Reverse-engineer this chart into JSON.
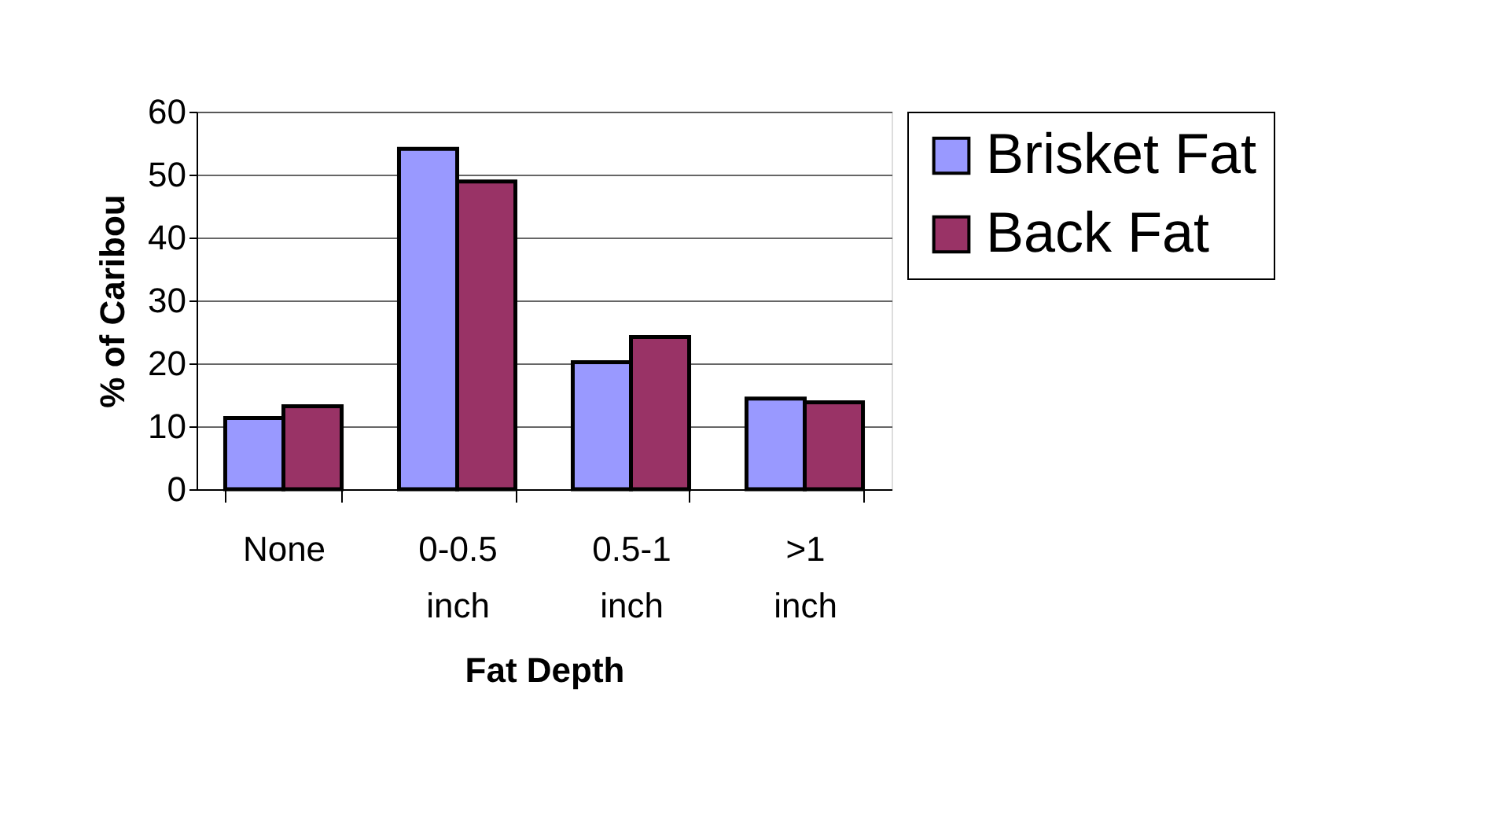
{
  "chart_data": {
    "type": "bar",
    "xlabel": "Fat Depth",
    "ylabel": "% of Caribou",
    "categories": [
      "None",
      "0-0.5 inch",
      "0.5-1 inch",
      ">1 inch"
    ],
    "series": [
      {
        "name": "Brisket Fat",
        "color": "#9999ff",
        "values": [
          11.3,
          54.1,
          20.2,
          14.4
        ]
      },
      {
        "name": "Back Fat",
        "color": "#993366",
        "values": [
          13.2,
          48.9,
          24.2,
          13.8
        ]
      }
    ],
    "ylim": [
      0,
      60
    ],
    "yticks": [
      0,
      10,
      20,
      30,
      40,
      50,
      60
    ],
    "grid": "y",
    "legend": "right"
  }
}
